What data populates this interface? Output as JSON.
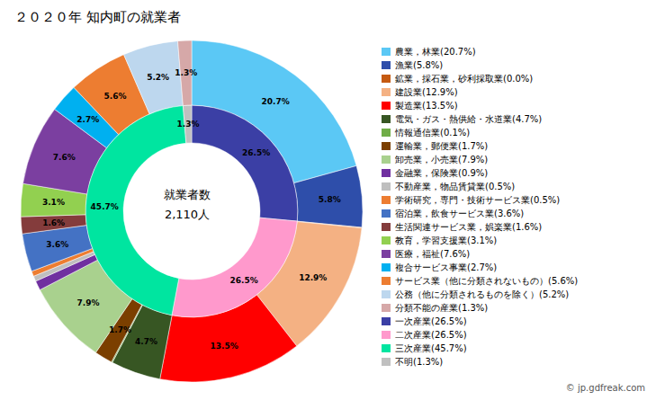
{
  "chart_data": {
    "type": "donut",
    "title": "２０２０年 知内町の就業者",
    "annotations": [
      "就業者数",
      "2,110人",
      "© jp.gdfreak.com"
    ],
    "legend": "right",
    "series": [
      {
        "categories": [
          "農業，林業(20.7%)",
          "漁業(5.8%)",
          "鉱業，採石業，砂利採取業(0.0%)",
          "建設業(12.9%)",
          "製造業(13.5%)",
          "電気・ガス・熱供給・水道業(4.7%)",
          "情報通信業(0.1%)",
          "運輸業，郵便業(1.7%)",
          "卸売業，小売業(7.9%)",
          "金融業，保険業(0.9%)",
          "不動産業，物品賃貸業(0.5%)",
          "学術研究，専門・技術サービス業(0.5%)",
          "宿泊業，飲食サービス業(3.6%)",
          "生活関連サービス業，娯楽業(1.6%)",
          "教育，学習支援業(3.1%)",
          "医療，福祉(7.6%)",
          "複合サービス事業(2.7%)",
          "サービス業（他に分類されないもの）(5.6%)",
          "公務（他に分類されるものを除く）(5.2%)",
          "分類不能の産業(1.3%)"
        ],
        "values": [
          20.7,
          5.8,
          0.05,
          12.9,
          13.5,
          4.7,
          0.1,
          1.7,
          7.9,
          0.9,
          0.5,
          0.5,
          3.6,
          1.6,
          3.1,
          7.6,
          2.7,
          5.6,
          5.2,
          1.3
        ],
        "value_labels": [
          "20.7%",
          "5.8%",
          null,
          "12.9%",
          "13.5%",
          "4.7%",
          null,
          "1.7%",
          "7.9%",
          null,
          null,
          null,
          "3.6%",
          "1.6%",
          "3.1%",
          "7.6%",
          "2.7%",
          "5.6%",
          "5.2%",
          "1.3%"
        ],
        "colors": [
          "#5BC8F5",
          "#2E4EAA",
          "#C55A11",
          "#F4B183",
          "#FF0000",
          "#375623",
          "#70AD47",
          "#7B3F00",
          "#A9D18E",
          "#7030A0",
          "#BFBFBF",
          "#ED7D31",
          "#4472C4",
          "#843C3C",
          "#92D050",
          "#7B3FA0",
          "#00B0F0",
          "#ED7D31",
          "#BDD7EE",
          "#D6A8A8"
        ]
      },
      {
        "categories": [
          "一次産業(26.5%)",
          "二次産業(26.5%)",
          "三次産業(45.7%)",
          "不明(1.3%)"
        ],
        "values": [
          26.5,
          26.5,
          45.7,
          1.3
        ],
        "value_labels": [
          "26.5%",
          "26.5%",
          "45.7%",
          "1.3%"
        ],
        "colors": [
          "#3B3FA5",
          "#FF99CC",
          "#00E5A0",
          "#C0C0C0"
        ]
      }
    ]
  }
}
